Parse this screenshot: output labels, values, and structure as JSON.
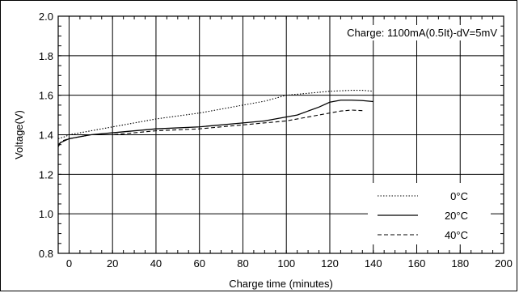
{
  "chart_data": {
    "type": "line",
    "title": "",
    "xlabel": "Charge time (minutes)",
    "ylabel": "Voltage(V)",
    "xlim": [
      -5,
      200
    ],
    "ylim": [
      0.8,
      2.0
    ],
    "x_ticks": [
      0,
      20,
      40,
      60,
      80,
      100,
      120,
      140,
      160,
      180,
      200
    ],
    "y_ticks": [
      0.8,
      1.0,
      1.2,
      1.4,
      1.6,
      1.8,
      2.0
    ],
    "y_tick_labels": [
      "0.8",
      "1.0",
      "1.2",
      "1.4",
      "1.6",
      "1.8",
      "2.0"
    ],
    "grid": true,
    "legend_position": "bottom-right",
    "annotation": "Charge: 1100mA(0.5It)-dV=5mV",
    "series": [
      {
        "name": "0°C",
        "style": "dotted",
        "x": [
          -5,
          -2,
          0,
          10,
          20,
          40,
          60,
          80,
          90,
          100,
          110,
          120,
          130,
          135,
          140
        ],
        "y": [
          1.38,
          1.39,
          1.4,
          1.42,
          1.44,
          1.48,
          1.51,
          1.55,
          1.57,
          1.6,
          1.61,
          1.62,
          1.625,
          1.625,
          1.62
        ]
      },
      {
        "name": "20°C",
        "style": "solid",
        "x": [
          -5,
          -4,
          -2,
          0,
          10,
          20,
          40,
          60,
          80,
          90,
          100,
          105,
          110,
          115,
          120,
          125,
          130,
          135,
          140
        ],
        "y": [
          1.34,
          1.36,
          1.37,
          1.38,
          1.4,
          1.41,
          1.43,
          1.44,
          1.46,
          1.47,
          1.49,
          1.5,
          1.52,
          1.54,
          1.565,
          1.575,
          1.575,
          1.573,
          1.568
        ]
      },
      {
        "name": "40°C",
        "style": "dashed",
        "x": [
          -5,
          -3,
          0,
          10,
          20,
          40,
          60,
          80,
          90,
          100,
          110,
          115,
          120,
          125,
          130,
          135
        ],
        "y": [
          1.35,
          1.37,
          1.38,
          1.4,
          1.4,
          1.42,
          1.43,
          1.45,
          1.46,
          1.47,
          1.49,
          1.5,
          1.51,
          1.52,
          1.525,
          1.522
        ]
      }
    ]
  }
}
